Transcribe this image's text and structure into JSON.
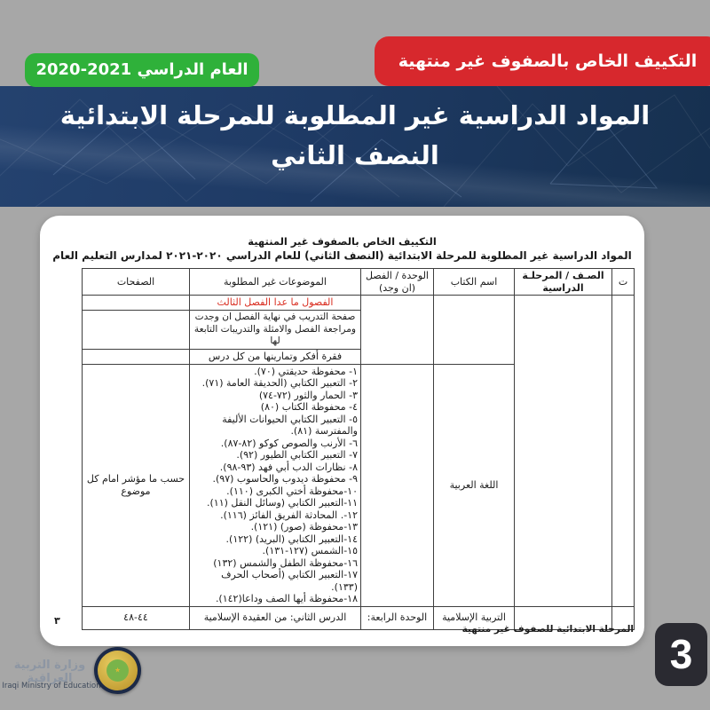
{
  "banners": {
    "special_adaptation": "التكييف الخاص بالصفوف غير منتهية",
    "school_year": "العام الدراسي 2021-2020"
  },
  "hero": {
    "title_line1": "المواد الدراسية غير المطلوبة للمرحلة الابتدائية",
    "title_line2": "النصف الثاني"
  },
  "document": {
    "heading_line1": "التكييف الخاص بالصفوف غير المنتهية",
    "heading_line2": "المواد الدراسية غير المطلوبة للمرحلة الابتدائية (النصف الثاني) للعام الدراسي ٢٠٢٠-٢٠٢١ لمدارس التعليم العام",
    "table": {
      "headers": {
        "serial": "ت",
        "grade": "الصـف / المرحلـة الدراسية",
        "book": "اسم الكتاب",
        "unit": "الوحدة / الفصل (ان وجد)",
        "topics": "الموضوعات غير المطلوبة",
        "pages": "الصفحات"
      },
      "rows": {
        "excluded_chapters": "الفصول ما عدا الفصل الثالث",
        "training_pages": "صفحة التدريب في نهاية الفصل ان وجدت ومراجعة الفصل والامثلة والتدريبات التابعة لها",
        "think_paragraph": "فقرة أفكر وتمارينها من كل درس",
        "arabic_language": {
          "book": "اللغة العربية",
          "pages": "حسب ما مؤشر امام كل موضوع",
          "topics": [
            "١- محفوظة حديقتي (٧٠).",
            "٢- التعبير الكتابي (الحديقة العامة (٧١).",
            "٣- الحمار والثور (٧٢-٧٤)",
            "٤- محفوظة الكتاب (٨٠)",
            "٥- التعبير الكتابي الحيوانات الأليفة والمفترسة (٨١).",
            "٦- الأرنب والصوص كوكو (٨٢-٨٧).",
            "٧- التعبير الكتابي الطيور (٩٢).",
            "٨- نظارات الدب أبي فهد (٩٣-٩٨).",
            "٩- محفوظة ديدوب والحاسوب (٩٧).",
            "١٠-محفوظة أختي الكبرى (١١٠).",
            "١١-التعبير الكتابي (وسائل النقل (١١).",
            "١٢-. المحادثة الفريق الفائز (١١٦).",
            "١٣-محفوظة (صور) (١٢١).",
            "١٤-التعبير الكتابي (البريد) (١٢٢).",
            "١٥-الشمس (١٢٧-١٣١).",
            "١٦-محفوظة الطفل والشمس (١٣٢)",
            "١٧-التعبير الكتابي (أصحاب الحرف (١٣٣).",
            "١٨-محفوظة أيها الصف وداعا(١٤٢)."
          ]
        },
        "islamic_education": {
          "book": "التربية الإسلامية",
          "unit": "الوحدة الرابعة:",
          "topics": "الدرس الثاني: من العقيدة الإسلامية",
          "pages": "٤٤-٤٨"
        }
      }
    },
    "footer_note": "المرحلة الابتدائية للصفوف غير منتهية",
    "page_number_arabic": "٣"
  },
  "page_badge": "3",
  "logo": {
    "arabic_name": "وزارة التربية العراقية",
    "english_name": "Iraqi Ministry of Education"
  },
  "colors": {
    "background_gray": "#a7a7a7",
    "band_blue": "#1e3a64",
    "ribbon_red": "#d7282d",
    "ribbon_green": "#2fb13a",
    "badge_dark": "#2a2a31",
    "doc_red_text": "#d92c1f"
  }
}
